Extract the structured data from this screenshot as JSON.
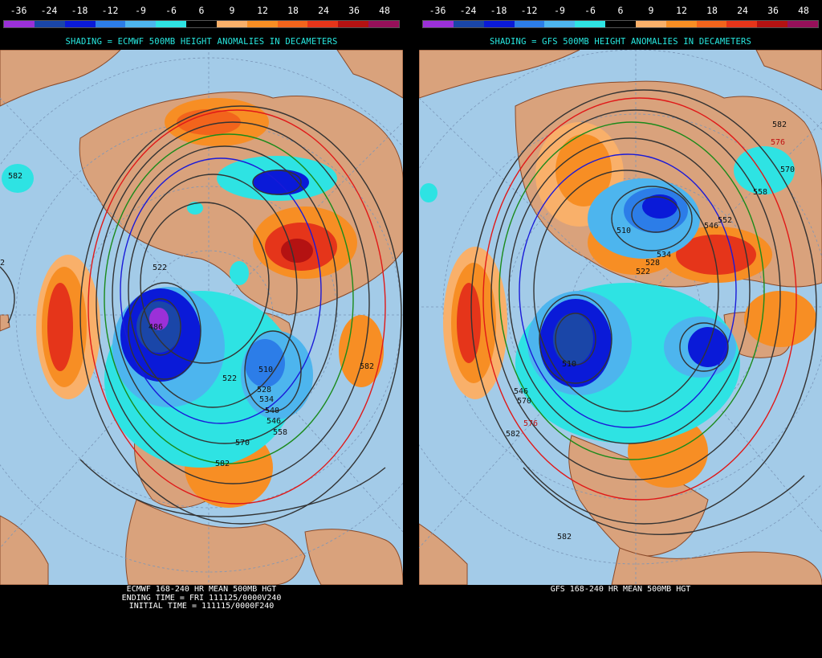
{
  "scale": {
    "ticks": [
      "-36",
      "-24",
      "-18",
      "-12",
      "-9",
      "-6",
      "6",
      "9",
      "12",
      "18",
      "24",
      "36",
      "48"
    ],
    "colors": [
      "#9b30d8",
      "#1a46a8",
      "#0a1ad8",
      "#2c7de8",
      "#4db5ee",
      "#2ee3e3",
      "#000000",
      "#f9b06a",
      "#f78e24",
      "#f2641c",
      "#e5351a",
      "#b41212",
      "#96105a"
    ]
  },
  "panels": [
    {
      "shading": "SHADING = ECMWF 500MB HEIGHT ANOMALIES IN DECAMETERS",
      "caption": [
        "ECMWF 168-240 HR MEAN 500MB HGT",
        "ENDING TIME = FRI 111125/0000V240",
        "INITIAL TIME = 111115/0000F240"
      ],
      "contour_labels": [
        "582",
        "522",
        "486",
        "522",
        "510",
        "528",
        "534",
        "540",
        "546",
        "558",
        "570",
        "582",
        "582",
        "2"
      ]
    },
    {
      "shading": "SHADING = GFS 500MB HEIGHT ANOMALIES IN DECAMETERS",
      "caption": [
        "GFS 168-240 HR MEAN 500MB HGT"
      ],
      "contour_labels": [
        "582",
        "576",
        "570",
        "558",
        "552",
        "546",
        "510",
        "534",
        "528",
        "522",
        "510",
        "546",
        "570",
        "576",
        "582",
        "582"
      ]
    }
  ]
}
